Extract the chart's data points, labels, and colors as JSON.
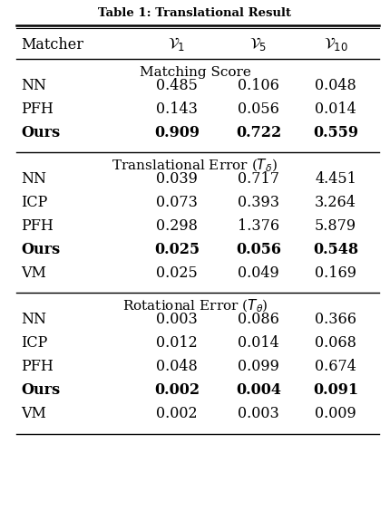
{
  "title": "Table 1: Translational Result",
  "col_headers": [
    "$\\mathcal{V}_1$",
    "$\\mathcal{V}_5$",
    "$\\mathcal{V}_{10}$"
  ],
  "sections": [
    {
      "section_title": "Matching Score",
      "rows": [
        {
          "name": "NN",
          "v1": "0.485",
          "v5": "0.106",
          "v10": "0.048",
          "bold": false
        },
        {
          "name": "PFH",
          "v1": "0.143",
          "v5": "0.056",
          "v10": "0.014",
          "bold": false
        },
        {
          "name": "Ours",
          "v1": "0.909",
          "v5": "0.722",
          "v10": "0.559",
          "bold": true
        }
      ]
    },
    {
      "section_title": "Translational Error ($T_\\delta$)",
      "rows": [
        {
          "name": "NN",
          "v1": "0.039",
          "v5": "0.717",
          "v10": "4.451",
          "bold": false
        },
        {
          "name": "ICP",
          "v1": "0.073",
          "v5": "0.393",
          "v10": "3.264",
          "bold": false
        },
        {
          "name": "PFH",
          "v1": "0.298",
          "v5": "1.376",
          "v10": "5.879",
          "bold": false
        },
        {
          "name": "Ours",
          "v1": "0.025",
          "v5": "0.056",
          "v10": "0.548",
          "bold": true
        },
        {
          "name": "VM",
          "v1": "0.025",
          "v5": "0.049",
          "v10": "0.169",
          "bold": false
        }
      ]
    },
    {
      "section_title": "Rotational Error ($T_\\theta$)",
      "rows": [
        {
          "name": "NN",
          "v1": "0.003",
          "v5": "0.086",
          "v10": "0.366",
          "bold": false
        },
        {
          "name": "ICP",
          "v1": "0.012",
          "v5": "0.014",
          "v10": "0.068",
          "bold": false
        },
        {
          "name": "PFH",
          "v1": "0.048",
          "v5": "0.099",
          "v10": "0.674",
          "bold": false
        },
        {
          "name": "Ours",
          "v1": "0.002",
          "v5": "0.004",
          "v10": "0.091",
          "bold": true
        },
        {
          "name": "VM",
          "v1": "0.002",
          "v5": "0.003",
          "v10": "0.009",
          "bold": false
        }
      ]
    }
  ],
  "bg_color": "#ffffff",
  "text_color": "#000000",
  "fig_width": 4.3,
  "fig_height": 5.64,
  "dpi": 100
}
